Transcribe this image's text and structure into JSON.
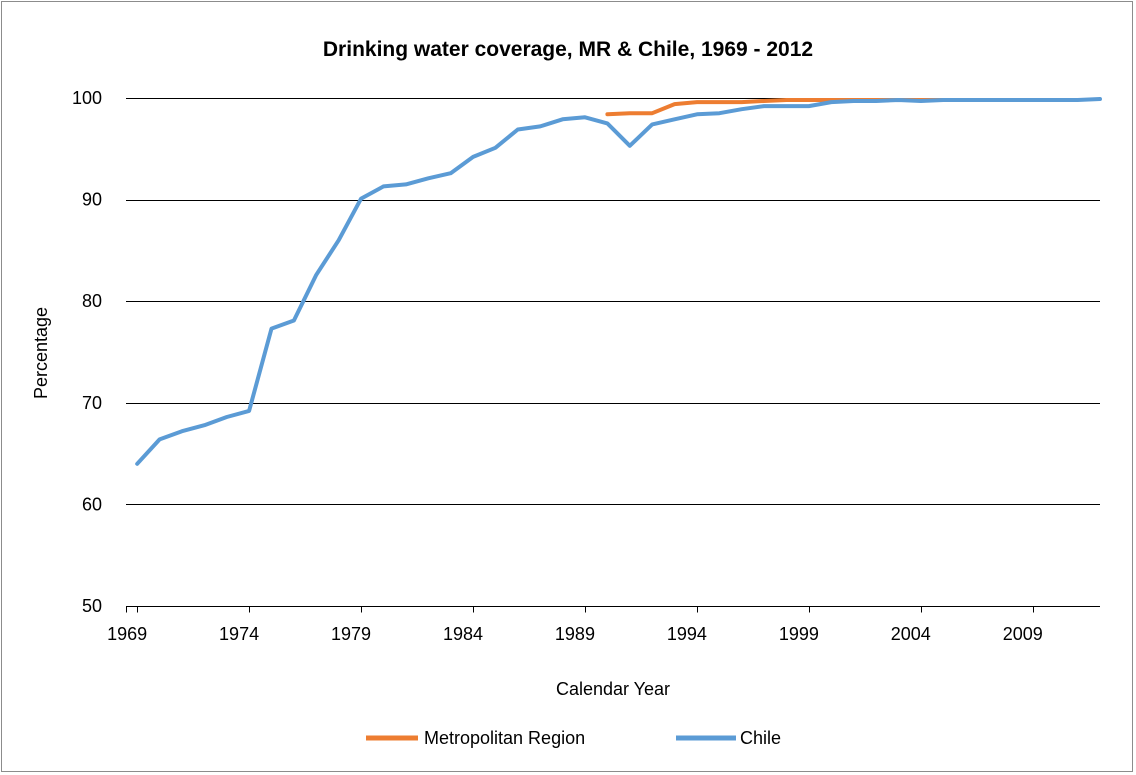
{
  "chart_data": {
    "type": "line",
    "title": "Drinking water coverage, MR & Chile, 1969 - 2012",
    "xlabel": "Calendar Year",
    "ylabel": "Percentage",
    "xlim": [
      1969,
      2012
    ],
    "ylim": [
      50,
      100
    ],
    "x_ticks": [
      1969,
      1974,
      1979,
      1984,
      1989,
      1994,
      1999,
      2004,
      2009
    ],
    "y_ticks": [
      50,
      60,
      70,
      80,
      90,
      100
    ],
    "grid": "horizontal",
    "legend_position": "bottom",
    "series": [
      {
        "name": "Metropolitan Region",
        "color": "#ED7D31",
        "x": [
          1990,
          1991,
          1992,
          1993,
          1994,
          1995,
          1996,
          1997,
          1998,
          1999,
          2000,
          2001,
          2002,
          2003,
          2004,
          2005
        ],
        "values": [
          98.4,
          98.5,
          98.5,
          99.4,
          99.6,
          99.6,
          99.6,
          99.7,
          99.8,
          99.8,
          99.8,
          99.8,
          99.8,
          99.8,
          99.8,
          99.8
        ]
      },
      {
        "name": "Chile",
        "color": "#5B9BD5",
        "x": [
          1969,
          1970,
          1971,
          1972,
          1973,
          1974,
          1975,
          1976,
          1977,
          1978,
          1979,
          1980,
          1981,
          1982,
          1983,
          1984,
          1985,
          1986,
          1987,
          1988,
          1989,
          1990,
          1991,
          1992,
          1993,
          1994,
          1995,
          1996,
          1997,
          1998,
          1999,
          2000,
          2001,
          2002,
          2003,
          2004,
          2005,
          2006,
          2007,
          2008,
          2009,
          2010,
          2011,
          2012
        ],
        "values": [
          64.0,
          66.4,
          67.2,
          67.8,
          68.6,
          69.2,
          77.3,
          78.1,
          82.6,
          86.0,
          90.1,
          91.3,
          91.5,
          92.1,
          92.6,
          94.2,
          95.1,
          96.9,
          97.2,
          97.9,
          98.1,
          97.5,
          95.3,
          97.4,
          97.9,
          98.4,
          98.5,
          98.9,
          99.2,
          99.2,
          99.2,
          99.6,
          99.7,
          99.7,
          99.8,
          99.7,
          99.8,
          99.8,
          99.8,
          99.8,
          99.8,
          99.8,
          99.8,
          99.9
        ]
      }
    ]
  }
}
